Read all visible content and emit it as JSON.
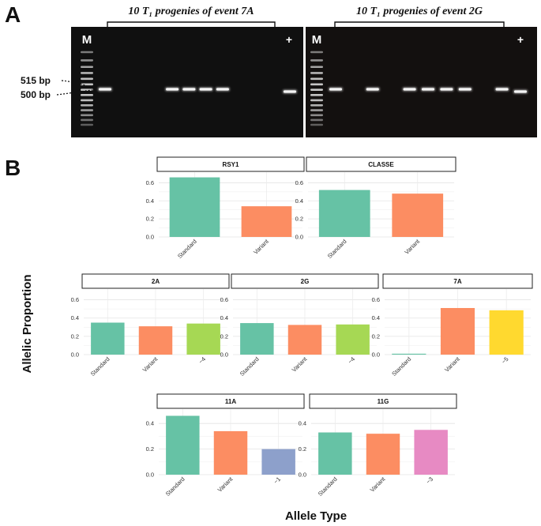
{
  "panel_a": {
    "letter": "A",
    "gels": [
      {
        "title": "10 T₁ progenies of event 7A",
        "marker_label": "M",
        "positive_label": "+",
        "lanes": [
          true,
          false,
          false,
          false,
          true,
          true,
          true,
          true,
          false,
          false,
          false,
          true
        ]
      },
      {
        "title": "10 T₁ progenies of event 2G",
        "marker_label": "M",
        "positive_label": "+",
        "lanes": [
          true,
          false,
          true,
          false,
          true,
          true,
          true,
          true,
          false,
          true,
          true
        ]
      }
    ],
    "bp_labels": [
      "515 bp",
      "500 bp"
    ]
  },
  "panel_b": {
    "letter": "B",
    "y_axis_title": "Allelic Proportion",
    "x_axis_title": "Allele Type"
  },
  "colors": {
    "Standard": "#66c2a5",
    "Variant": "#fc8d62",
    "-4": "#a6d854",
    "-5": "#ffd92f",
    "-1": "#8da0cb",
    "-3": "#e78ac3"
  },
  "chart_data": [
    {
      "type": "bar",
      "title": "RSY1",
      "categories": [
        "Standard",
        "Variant"
      ],
      "values": [
        0.66,
        0.34
      ],
      "ylim": [
        0,
        0.7
      ],
      "yticks": [
        "0.0",
        "0.2",
        "0.4",
        "0.6"
      ]
    },
    {
      "type": "bar",
      "title": "CLASSE",
      "categories": [
        "Standard",
        "Variant"
      ],
      "values": [
        0.52,
        0.48
      ],
      "ylim": [
        0,
        0.7
      ],
      "yticks": [
        "0.0",
        "0.2",
        "0.4",
        "0.6"
      ]
    },
    {
      "type": "bar",
      "title": "2A",
      "categories": [
        "Standard",
        "Variant",
        "−4"
      ],
      "values": [
        0.35,
        0.31,
        0.34
      ],
      "ylim": [
        0,
        0.7
      ],
      "yticks": [
        "0.0",
        "0.2",
        "0.4",
        "0.6"
      ]
    },
    {
      "type": "bar",
      "title": "2G",
      "categories": [
        "Standard",
        "Variant",
        "−4"
      ],
      "values": [
        0.345,
        0.325,
        0.33
      ],
      "ylim": [
        0,
        0.7
      ],
      "yticks": [
        "0.0",
        "0.2",
        "0.4",
        "0.6"
      ]
    },
    {
      "type": "bar",
      "title": "7A",
      "categories": [
        "Standard",
        "Variant",
        "−5"
      ],
      "values": [
        0.01,
        0.51,
        0.485
      ],
      "ylim": [
        0,
        0.7
      ],
      "yticks": [
        "0.0",
        "0.2",
        "0.4",
        "0.6"
      ]
    },
    {
      "type": "bar",
      "title": "11A",
      "categories": [
        "Standard",
        "Variant",
        "−1"
      ],
      "values": [
        0.46,
        0.34,
        0.2
      ],
      "ylim": [
        0,
        0.5
      ],
      "yticks": [
        "0.0",
        "0.2",
        "0.4"
      ]
    },
    {
      "type": "bar",
      "title": "11G",
      "categories": [
        "Standard",
        "Variant",
        "−3"
      ],
      "values": [
        0.33,
        0.32,
        0.35
      ],
      "ylim": [
        0,
        0.5
      ],
      "yticks": [
        "0.0",
        "0.2",
        "0.4"
      ]
    }
  ]
}
